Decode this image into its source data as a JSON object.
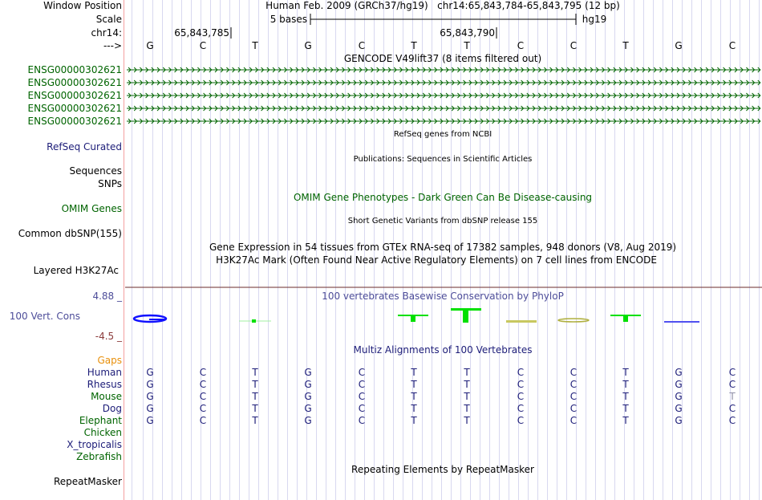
{
  "header": {
    "window_position_label": "Window Position",
    "scale_label": "Scale",
    "chrom_label": "chr14:",
    "strand_label": "--->",
    "position_text": "Human Feb. 2009 (GRCh37/hg19)   chr14:65,843,784-65,843,795 (12 bp)",
    "scale_text": "5 bases",
    "assembly": "hg19",
    "ticks": [
      "65,843,785",
      "65,843,790"
    ]
  },
  "bases": [
    "G",
    "C",
    "T",
    "G",
    "C",
    "T",
    "T",
    "C",
    "C",
    "T",
    "G",
    "C"
  ],
  "tracks": {
    "gencode_title": "GENCODE V49lift37 (8 items filtered out)",
    "gencode_items": [
      "ENSG00000302621",
      "ENSG00000302621",
      "ENSG00000302621",
      "ENSG00000302621",
      "ENSG00000302621"
    ],
    "refseq_title": "RefSeq genes from NCBI",
    "refseq_label": "RefSeq Curated",
    "pubs_title": "Publications: Sequences in Scientific Articles",
    "pubs_label": "Sequences",
    "snps_label": "SNPs",
    "omim_title": "OMIM Gene Phenotypes - Dark Green Can Be Disease-causing",
    "omim_label": "OMIM Genes",
    "dbsnp_title": "Short Genetic Variants from dbSNP release 155",
    "dbsnp_label": "Common dbSNP(155)",
    "gtex_title": "Gene Expression in 54 tissues from GTEx RNA-seq of 17382 samples, 948 donors (V8, Aug 2019)",
    "h3k_title": "H3K27Ac Mark (Often Found Near Active Regulatory Elements) on 7 cell lines from ENCODE",
    "h3k_label": "Layered H3K27Ac",
    "phylop_title": "100 vertebrates Basewise Conservation by PhyloP",
    "phylop_label": "100 Vert. Cons",
    "phylop_max": "4.88 _",
    "phylop_min": "-4.5 _",
    "multiz_title": "Multiz Alignments of 100 Vertebrates",
    "gaps_label": "Gaps",
    "species": [
      {
        "name": "Human",
        "color": "#1c1c78",
        "seq": "GCTGCTTCCTGC"
      },
      {
        "name": "Rhesus",
        "color": "#1c1c78",
        "seq": "GCTGCTTCCTGC"
      },
      {
        "name": "Mouse",
        "color": "#006400",
        "seq": "GCTGCTTCCTGT"
      },
      {
        "name": "Dog",
        "color": "#1c1c78",
        "seq": "GCTGCTTCCTGC"
      },
      {
        "name": "Elephant",
        "color": "#006400",
        "seq": "GCTGCTTCCTGC"
      },
      {
        "name": "Chicken",
        "color": "#006400",
        "seq": ""
      },
      {
        "name": "X_tropicalis",
        "color": "#1c1c78",
        "seq": ""
      },
      {
        "name": "Zebrafish",
        "color": "#006400",
        "seq": ""
      }
    ],
    "rmsk_title": "Repeating Elements by RepeatMasker",
    "rmsk_label": "RepeatMasker"
  }
}
